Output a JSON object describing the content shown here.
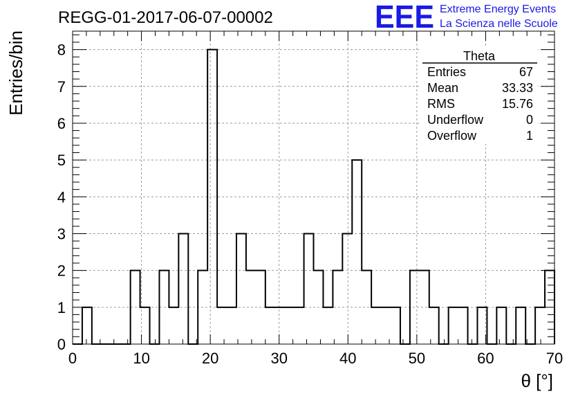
{
  "header": {
    "title": "REGG-01-2017-06-07-00002",
    "logo_text": "EEE",
    "logo_line1": "Extreme Energy Events",
    "logo_line2": "La Scienza nelle Scuole",
    "logo_color": "#1a1ae6"
  },
  "stats": {
    "title": "Theta",
    "rows": [
      {
        "label": "Entries",
        "value": "67"
      },
      {
        "label": "Mean",
        "value": "33.33"
      },
      {
        "label": "RMS",
        "value": "15.76"
      },
      {
        "label": "Underflow",
        "value": "0"
      },
      {
        "label": "Overflow",
        "value": "1"
      }
    ]
  },
  "chart_data": {
    "type": "bar",
    "histogram": true,
    "xlabel": "θ [°]",
    "ylabel": "Entries/bin",
    "xlim": [
      0,
      70
    ],
    "ylim": [
      0,
      8.5
    ],
    "grid": true,
    "bin_width": 1.4,
    "x_ticks": [
      0,
      10,
      20,
      30,
      40,
      50,
      60,
      70
    ],
    "y_ticks": [
      0,
      1,
      2,
      3,
      4,
      5,
      6,
      7,
      8
    ],
    "values": [
      0,
      1,
      0,
      0,
      0,
      0,
      2,
      1,
      0,
      2,
      1,
      3,
      0,
      2,
      8,
      1,
      1,
      3,
      2,
      2,
      1,
      1,
      1,
      1,
      3,
      2,
      1,
      2,
      3,
      5,
      2,
      1,
      1,
      1,
      0,
      2,
      2,
      1,
      0,
      1,
      1,
      0,
      1,
      0,
      1,
      0,
      1,
      0,
      1,
      2
    ]
  }
}
